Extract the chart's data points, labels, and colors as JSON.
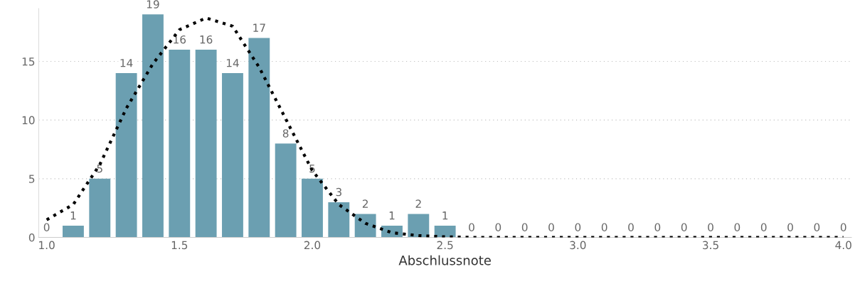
{
  "chart_data": {
    "type": "bar",
    "xlabel": "Abschlussnote",
    "x": [
      1.0,
      1.1,
      1.2,
      1.3,
      1.4,
      1.5,
      1.6,
      1.7,
      1.8,
      1.9,
      2.0,
      2.1,
      2.2,
      2.3,
      2.4,
      2.5,
      2.6,
      2.7,
      2.8,
      2.9,
      3.0,
      3.1,
      3.2,
      3.3,
      3.4,
      3.5,
      3.6,
      3.7,
      3.8,
      3.9,
      4.0
    ],
    "series": [
      {
        "color": "#6b9fb1",
        "values": [
          0,
          1,
          5,
          14,
          19,
          16,
          16,
          14,
          17,
          8,
          5,
          3,
          2,
          1,
          2,
          1,
          0,
          0,
          0,
          0,
          0,
          0,
          0,
          0,
          0,
          0,
          0,
          0,
          0,
          0,
          0
        ],
        "value_labels": [
          "0",
          "1",
          "5",
          "14",
          "19",
          "16",
          "16",
          "14",
          "17",
          "8",
          "5",
          "3",
          "2",
          "1",
          "2",
          "1",
          "0",
          "0",
          "0",
          "0",
          "0",
          "0",
          "0",
          "0",
          "0",
          "0",
          "0",
          "0",
          "0",
          "0",
          "0"
        ]
      },
      {
        "type": "line",
        "color": "#000000",
        "line_style": "dotted",
        "marker": "none",
        "x": [
          1.0,
          1.1,
          1.2,
          1.3,
          1.4,
          1.5,
          1.6,
          1.7,
          1.8,
          1.9,
          2.0,
          2.1,
          2.2,
          2.3,
          2.4,
          2.5,
          2.6,
          3.0,
          3.5,
          4.0
        ],
        "values": [
          1.5,
          2.8,
          6.2,
          11,
          14.8,
          17.7,
          18.7,
          18,
          14.5,
          10.1,
          5.7,
          2.8,
          1.2,
          0.4,
          0.15,
          0.05,
          0,
          0,
          0,
          0
        ]
      }
    ],
    "xlim": [
      0.97,
      4.03
    ],
    "xticks": [
      {
        "value": 1.0,
        "label": "1.0"
      },
      {
        "value": 1.5,
        "label": "1.5"
      },
      {
        "value": 2.0,
        "label": "2.0"
      },
      {
        "value": 2.5,
        "label": "2.5"
      },
      {
        "value": 3.0,
        "label": "3.0"
      },
      {
        "value": 3.5,
        "label": "3.5"
      },
      {
        "value": 4.0,
        "label": "4.0"
      }
    ],
    "ylim": [
      0,
      19.5
    ],
    "yticks": [
      0,
      5,
      10,
      15
    ],
    "grid": "y",
    "legend": false
  }
}
